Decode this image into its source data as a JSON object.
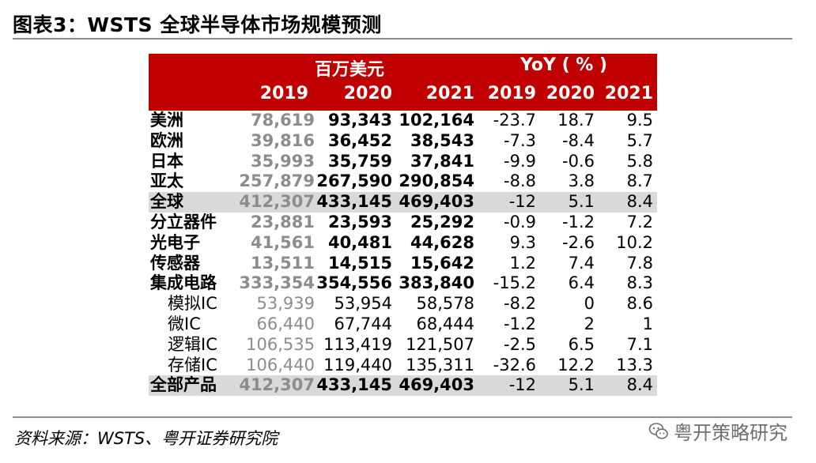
{
  "title": "图表3：WSTS 全球半导体市场规模预测",
  "header": {
    "group_value": "百万美元",
    "group_yoy": "YoY ( % )",
    "years": [
      "2019",
      "2020",
      "2021",
      "2019",
      "2020",
      "2021"
    ]
  },
  "rows": [
    {
      "name": "美洲",
      "v2019": "78,619",
      "v2020": "93,343",
      "v2021": "102,164",
      "y2019": "-23.7",
      "y2020": "18.7",
      "y2021": "9.5",
      "style": "bold"
    },
    {
      "name": "欧洲",
      "v2019": "39,816",
      "v2020": "36,452",
      "v2021": "38,543",
      "y2019": "-7.3",
      "y2020": "-8.4",
      "y2021": "5.7",
      "style": "bold"
    },
    {
      "name": "日本",
      "v2019": "35,993",
      "v2020": "35,759",
      "v2021": "37,841",
      "y2019": "-9.9",
      "y2020": "-0.6",
      "y2021": "5.8",
      "style": "bold"
    },
    {
      "name": "亚太",
      "v2019": "257,879",
      "v2020": "267,590",
      "v2021": "290,854",
      "y2019": "-8.8",
      "y2020": "3.8",
      "y2021": "8.7",
      "style": "bold"
    },
    {
      "name": "全球",
      "v2019": "412,307",
      "v2020": "433,145",
      "v2021": "469,403",
      "y2019": "-12",
      "y2020": "5.1",
      "y2021": "8.4",
      "style": "bold shade"
    },
    {
      "name": "分立器件",
      "v2019": "23,881",
      "v2020": "23,593",
      "v2021": "25,292",
      "y2019": "-0.9",
      "y2020": "-1.2",
      "y2021": "7.2",
      "style": "bold"
    },
    {
      "name": "光电子",
      "v2019": "41,561",
      "v2020": "40,481",
      "v2021": "44,628",
      "y2019": "9.3",
      "y2020": "-2.6",
      "y2021": "10.2",
      "style": "bold"
    },
    {
      "name": "传感器",
      "v2019": "13,511",
      "v2020": "14,515",
      "v2021": "15,642",
      "y2019": "1.2",
      "y2020": "7.4",
      "y2021": "7.8",
      "style": "bold"
    },
    {
      "name": "集成电路",
      "v2019": "333,354",
      "v2020": "354,556",
      "v2021": "383,840",
      "y2019": "-15.2",
      "y2020": "6.4",
      "y2021": "8.3",
      "style": "bold"
    },
    {
      "name": "模拟IC",
      "v2019": "53,939",
      "v2020": "53,954",
      "v2021": "58,578",
      "y2019": "-8.2",
      "y2020": "0",
      "y2021": "8.6",
      "style": "sub"
    },
    {
      "name": "微IC",
      "v2019": "66,440",
      "v2020": "67,744",
      "v2021": "68,444",
      "y2019": "-1.2",
      "y2020": "2",
      "y2021": "1",
      "style": "sub"
    },
    {
      "name": "逻辑IC",
      "v2019": "106,535",
      "v2020": "113,419",
      "v2021": "121,507",
      "y2019": "-2.5",
      "y2020": "6.5",
      "y2021": "7.1",
      "style": "sub"
    },
    {
      "name": "存储IC",
      "v2019": "106,440",
      "v2020": "119,440",
      "v2021": "135,311",
      "y2019": "-32.6",
      "y2020": "12.2",
      "y2021": "13.3",
      "style": "sub"
    },
    {
      "name": "全部产品",
      "v2019": "412,307",
      "v2020": "433,145",
      "v2021": "469,403",
      "y2019": "-12",
      "y2020": "5.1",
      "y2021": "8.4",
      "style": "bold shade"
    }
  ],
  "source": "资料来源：WSTS、粤开证券研究院",
  "watermark": {
    "text": "粤开策略研究",
    "icon": "wechat-icon"
  },
  "colors": {
    "header_bg": "#c00000",
    "shade_bg": "#d9d9d9",
    "muted_text": "#8c8c8c"
  }
}
